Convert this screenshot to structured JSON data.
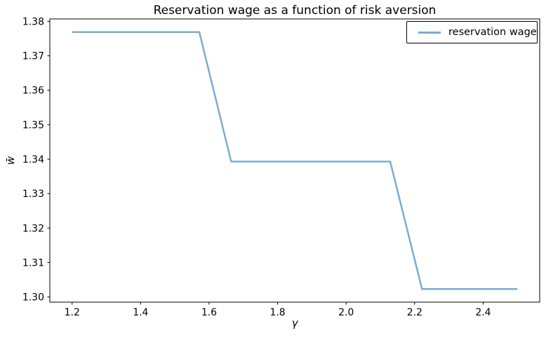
{
  "figure": {
    "background": "#ffffff",
    "frame_color": "#000000",
    "text_color": "#000000"
  },
  "chart_data": {
    "type": "line",
    "title": "Reservation wage as a function of risk aversion",
    "xlabel": "γ",
    "ylabel": "w̄",
    "grid": false,
    "line_color": "#79add2",
    "line_width": 2.5,
    "xlim": [
      1.135,
      2.565
    ],
    "ylim": [
      1.2985,
      1.3807
    ],
    "x_tick_values": [
      1.2,
      1.4,
      1.6,
      1.8,
      2.0,
      2.2,
      2.4
    ],
    "x_tick_labels": [
      "1.2",
      "1.4",
      "1.6",
      "1.8",
      "2.0",
      "2.2",
      "2.4"
    ],
    "y_tick_values": [
      1.3,
      1.31,
      1.32,
      1.33,
      1.34,
      1.35,
      1.36,
      1.37,
      1.38
    ],
    "y_tick_labels": [
      "1.30",
      "1.31",
      "1.32",
      "1.33",
      "1.34",
      "1.35",
      "1.36",
      "1.37",
      "1.38"
    ],
    "legend": {
      "position": "upper right",
      "framed": true
    },
    "series": [
      {
        "name": "reservation wage",
        "x": [
          1.2,
          1.2929,
          1.3857,
          1.4786,
          1.5714,
          1.6643,
          1.7571,
          1.85,
          1.9429,
          2.0357,
          2.1286,
          2.2214,
          2.3143,
          2.4071,
          2.5
        ],
        "y": [
          1.3769,
          1.3769,
          1.3769,
          1.3769,
          1.3769,
          1.3393,
          1.3393,
          1.3393,
          1.3393,
          1.3393,
          1.3393,
          1.3023,
          1.3023,
          1.3023,
          1.3023
        ]
      }
    ]
  }
}
